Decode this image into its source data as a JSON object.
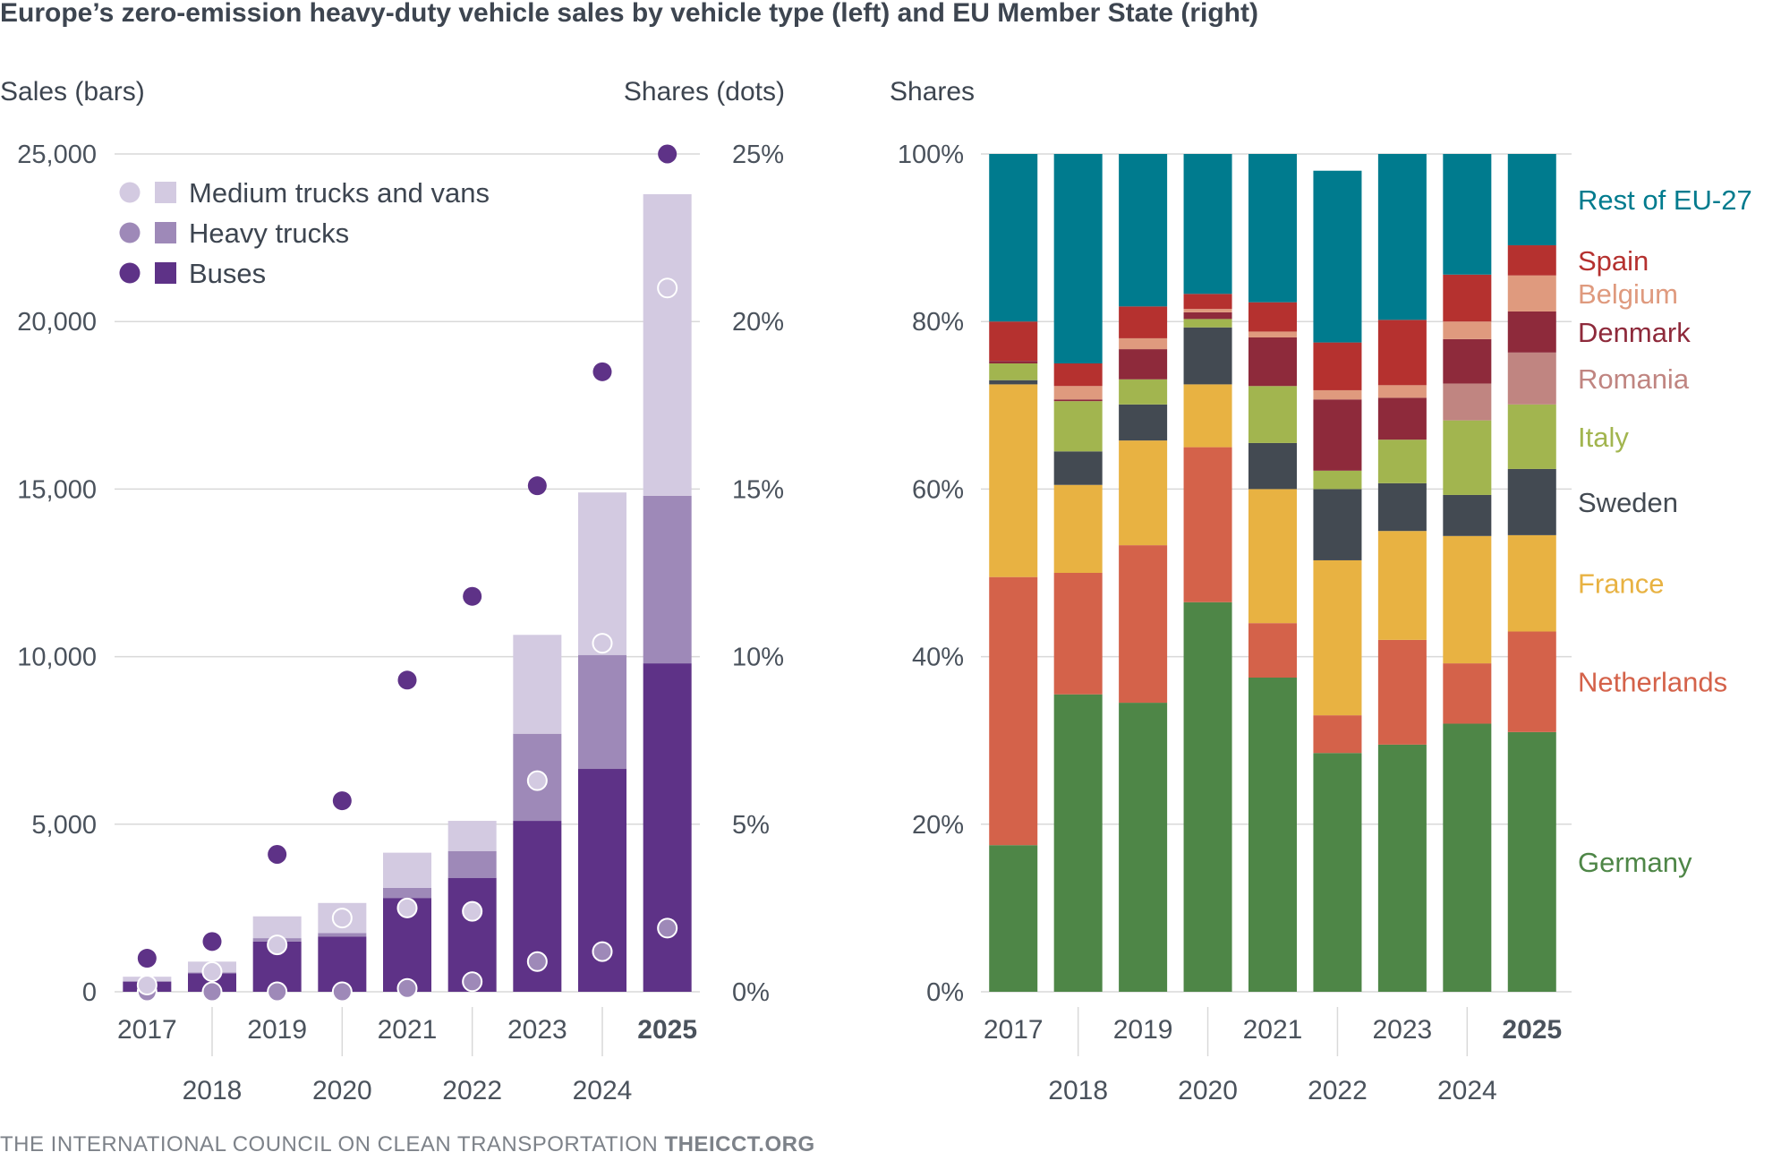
{
  "title": "Europe’s zero-emission heavy-duty vehicle sales by vehicle type (left) and EU Member State (right)",
  "footer": {
    "org": "THE INTERNATIONAL COUNCIL ON CLEAN TRANSPORTATION",
    "site": "THEICCT.ORG"
  },
  "colors": {
    "medium": "#d3cae1",
    "heavy": "#9e89b8",
    "buses": "#5e3287",
    "grid": "#d9d9d9",
    "text": "#3d4550"
  },
  "chart_data": [
    {
      "type": "bar",
      "stacked": true,
      "secondary_type": "scatter",
      "title": "Europe’s zero-emission heavy-duty vehicle sales by vehicle type",
      "ylabel": "Sales (bars)",
      "y2label": "Shares (dots)",
      "ylim": [
        0,
        25000
      ],
      "y2lim": [
        0,
        25
      ],
      "yticks": [
        "0",
        "5,000",
        "10,000",
        "15,000",
        "20,000",
        "25,000"
      ],
      "y2ticks": [
        "0%",
        "5%",
        "10%",
        "15%",
        "20%",
        "25%"
      ],
      "categories": [
        "2017",
        "2018",
        "2019",
        "2020",
        "2021",
        "2022",
        "2023",
        "2024",
        "2025"
      ],
      "bold_category": "2025",
      "legend": [
        "Medium trucks and vans",
        "Heavy trucks",
        "Buses"
      ],
      "series": [
        {
          "name": "Buses",
          "color": "#5e3287",
          "values": [
            300,
            550,
            1500,
            1650,
            2800,
            3400,
            5100,
            6650,
            9800
          ]
        },
        {
          "name": "Heavy trucks",
          "color": "#9e89b8",
          "values": [
            20,
            30,
            100,
            100,
            300,
            800,
            2600,
            3400,
            5000
          ]
        },
        {
          "name": "Medium trucks and vans",
          "color": "#d3cae1",
          "values": [
            130,
            320,
            650,
            900,
            1050,
            900,
            2950,
            4850,
            9000
          ]
        }
      ],
      "shares": [
        {
          "name": "Buses",
          "color": "#5e3287",
          "values": [
            1.0,
            1.5,
            4.1,
            5.7,
            9.3,
            11.8,
            15.1,
            18.5,
            25.0
          ]
        },
        {
          "name": "Heavy trucks",
          "color": "#9e89b8",
          "values": [
            0.0,
            0.0,
            0.0,
            0.0,
            0.1,
            0.3,
            0.9,
            1.2,
            1.9
          ]
        },
        {
          "name": "Medium trucks and vans",
          "color": "#d3cae1",
          "values": [
            0.2,
            0.6,
            1.4,
            2.2,
            2.5,
            2.4,
            6.3,
            10.4,
            21.0
          ]
        }
      ]
    },
    {
      "type": "bar",
      "stacked": true,
      "title": "Europe’s zero-emission heavy-duty vehicle sales by EU Member State",
      "ylabel": "Shares",
      "ylim": [
        0,
        100
      ],
      "yticks": [
        "0%",
        "20%",
        "40%",
        "60%",
        "80%",
        "100%"
      ],
      "categories": [
        "2017",
        "2018",
        "2019",
        "2020",
        "2021",
        "2022",
        "2023",
        "2024",
        "2025"
      ],
      "bold_category": "2025",
      "series": [
        {
          "name": "Germany",
          "color": "#4e8647",
          "values": [
            17.5,
            35.5,
            34.5,
            46.5,
            37.5,
            28.5,
            29.5,
            32.0,
            31.0
          ]
        },
        {
          "name": "Netherlands",
          "color": "#d4624a",
          "values": [
            32.0,
            14.5,
            18.8,
            18.5,
            6.5,
            4.5,
            12.5,
            7.2,
            12.0
          ]
        },
        {
          "name": "France",
          "color": "#e8b242",
          "values": [
            23.0,
            10.5,
            12.5,
            7.5,
            16.0,
            18.5,
            13.0,
            15.2,
            11.5
          ]
        },
        {
          "name": "Sweden",
          "color": "#434a52",
          "values": [
            0.5,
            4.0,
            4.3,
            6.8,
            5.5,
            8.5,
            5.7,
            4.9,
            7.9
          ]
        },
        {
          "name": "Italy",
          "color": "#a2b54f",
          "values": [
            2.0,
            6.0,
            3.0,
            1.0,
            6.8,
            2.2,
            5.2,
            8.9,
            7.7
          ]
        },
        {
          "name": "Romania",
          "color": "#c08581",
          "values": [
            0.0,
            0.0,
            0.0,
            0.0,
            0.0,
            0.0,
            0.0,
            4.4,
            6.2
          ]
        },
        {
          "name": "Denmark",
          "color": "#8e2a3b",
          "values": [
            0.3,
            0.2,
            3.6,
            0.8,
            5.8,
            8.5,
            5.0,
            5.3,
            4.9
          ]
        },
        {
          "name": "Belgium",
          "color": "#df9a7e",
          "values": [
            0.0,
            1.6,
            1.3,
            0.4,
            0.7,
            1.1,
            1.5,
            2.1,
            4.3
          ]
        },
        {
          "name": "Spain",
          "color": "#b5312f",
          "values": [
            4.7,
            2.7,
            3.8,
            1.8,
            3.5,
            5.7,
            7.8,
            5.6,
            3.6
          ]
        },
        {
          "name": "Rest of EU-27",
          "color": "#007b8e",
          "values": [
            20.0,
            25.0,
            18.2,
            16.7,
            17.7,
            20.5,
            19.8,
            14.4,
            10.9
          ]
        }
      ]
    }
  ]
}
